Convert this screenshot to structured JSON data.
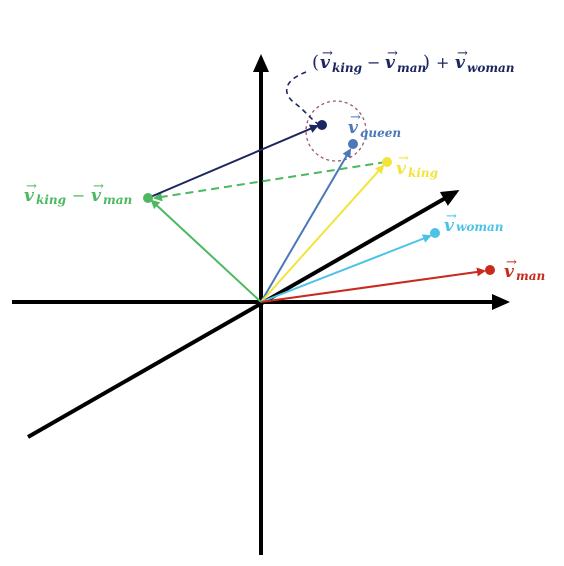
{
  "colors": {
    "axis": "#000000",
    "queen": "#4a78b8",
    "king": "#f2e43a",
    "woman": "#4cc3e6",
    "man": "#c82a1e",
    "diff": "#4cb860",
    "result": "#1c2660",
    "circle": "#9a5a6a"
  },
  "vectors": {
    "queen": {
      "label_sym": "v",
      "label_sub": "queen"
    },
    "king": {
      "label_sym": "v",
      "label_sub": "king"
    },
    "woman": {
      "label_sym": "v",
      "label_sub": "woman"
    },
    "man": {
      "label_sym": "v",
      "label_sub": "man"
    }
  },
  "difference": {
    "sym_a": "v",
    "sub_a": "king",
    "minus": "−",
    "sym_b": "v",
    "sub_b": "man"
  },
  "result": {
    "open_paren": "(",
    "sym_a": "v",
    "sub_a": "king",
    "minus": "−",
    "sym_b": "v",
    "sub_b": "man",
    "close_paren": ")",
    "plus": "+",
    "sym_c": "v",
    "sub_c": "woman"
  },
  "arrow_glyph": "→"
}
